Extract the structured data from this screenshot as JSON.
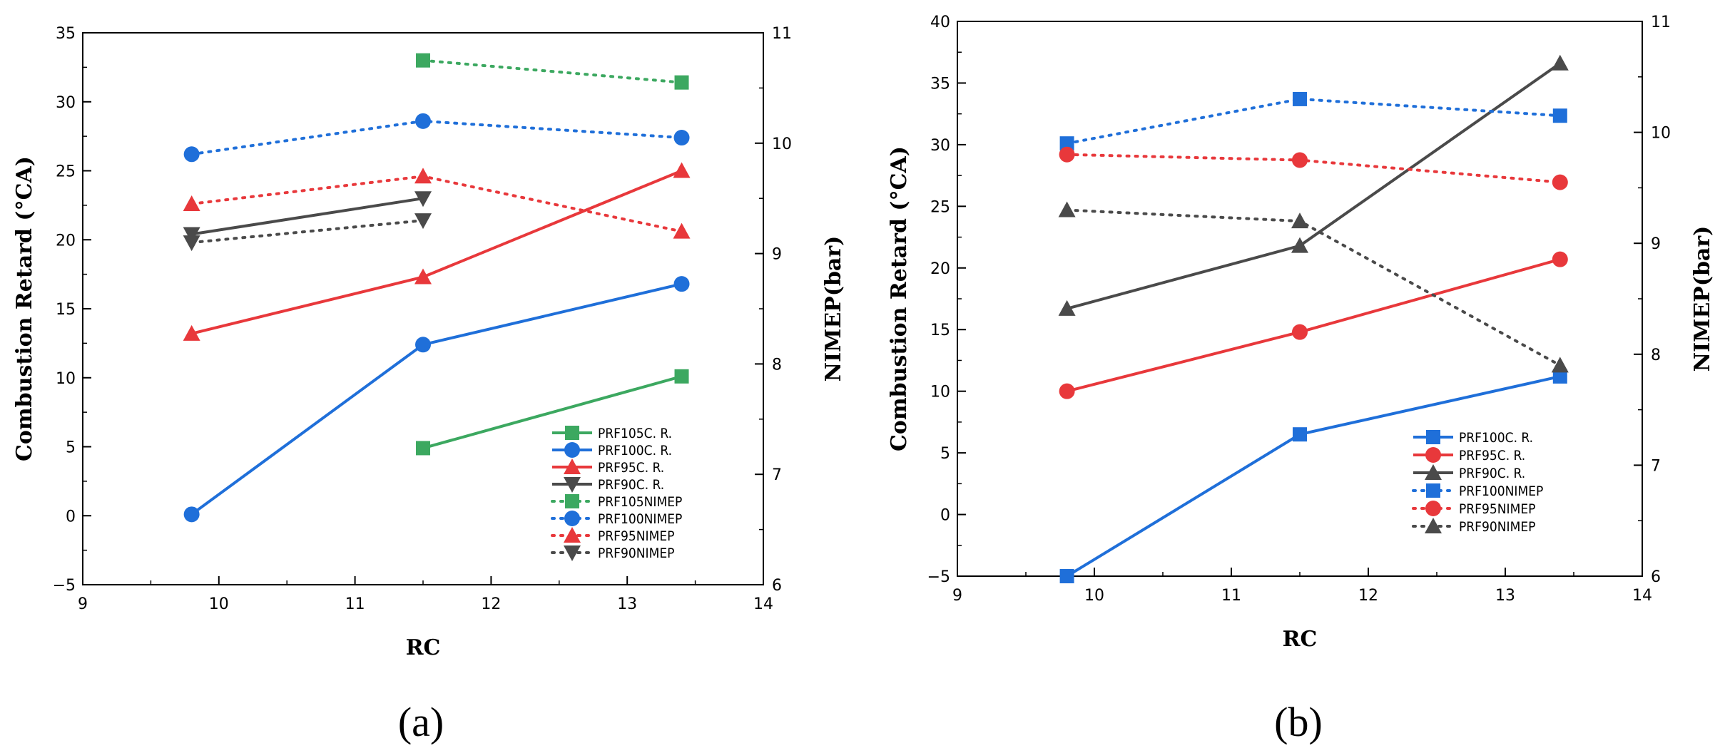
{
  "colors": {
    "PRF105": "#3CA860",
    "PRF100": "#1F6FD9",
    "PRF95": "#E8383B",
    "PRF90": "#4A4A4A"
  },
  "chart_data": [
    {
      "type": "line",
      "panel_label": "(a)",
      "xlabel": "RC",
      "ylabel": "Combustion Retard (°CA)",
      "y2label": "NIMEP(bar)",
      "xlim": [
        9,
        14
      ],
      "ylim": [
        -5,
        35
      ],
      "y2lim": [
        6,
        11
      ],
      "x_ticks": [
        9,
        10,
        11,
        12,
        13,
        14
      ],
      "y_ticks": [
        -5,
        0,
        5,
        10,
        15,
        20,
        25,
        30,
        35
      ],
      "y2_ticks": [
        6,
        7,
        8,
        9,
        10,
        11
      ],
      "legend_position": "bottom-right",
      "series": [
        {
          "name": "PRF105C. R.",
          "axis": "left",
          "style": "solid",
          "marker": "square",
          "color_key": "PRF105",
          "x": [
            11.5,
            13.4
          ],
          "y": [
            4.9,
            10.1
          ]
        },
        {
          "name": "PRF100C. R.",
          "axis": "left",
          "style": "solid",
          "marker": "circle",
          "color_key": "PRF100",
          "x": [
            9.8,
            11.5,
            13.4
          ],
          "y": [
            0.1,
            12.4,
            16.8
          ]
        },
        {
          "name": "PRF95C. R.",
          "axis": "left",
          "style": "solid",
          "marker": "triangle-up",
          "color_key": "PRF95",
          "x": [
            9.8,
            11.5,
            13.4
          ],
          "y": [
            13.2,
            17.3,
            25.0
          ]
        },
        {
          "name": "PRF90C. R.",
          "axis": "left",
          "style": "solid",
          "marker": "triangle-down",
          "color_key": "PRF90",
          "x": [
            9.8,
            11.5
          ],
          "y": [
            20.4,
            23.0
          ]
        },
        {
          "name": "PRF105NIMEP",
          "axis": "right",
          "style": "dotted",
          "marker": "square",
          "color_key": "PRF105",
          "x": [
            11.5,
            13.4
          ],
          "y": [
            10.75,
            10.55
          ]
        },
        {
          "name": "PRF100NIMEP",
          "axis": "right",
          "style": "dotted",
          "marker": "circle",
          "color_key": "PRF100",
          "x": [
            9.8,
            11.5,
            13.4
          ],
          "y": [
            9.9,
            10.2,
            10.05
          ]
        },
        {
          "name": "PRF95NIMEP",
          "axis": "right",
          "style": "dotted",
          "marker": "triangle-up",
          "color_key": "PRF95",
          "x": [
            9.8,
            11.5,
            13.4
          ],
          "y": [
            9.45,
            9.7,
            9.2
          ]
        },
        {
          "name": "PRF90NIMEP",
          "axis": "right",
          "style": "dotted",
          "marker": "triangle-down",
          "color_key": "PRF90",
          "x": [
            9.8,
            11.5
          ],
          "y": [
            9.1,
            9.3
          ]
        }
      ]
    },
    {
      "type": "line",
      "panel_label": "(b)",
      "xlabel": "RC",
      "ylabel": "Combustion Retard (°CA)",
      "y2label": "NIMEP(bar)",
      "xlim": [
        9,
        14
      ],
      "ylim": [
        -5,
        40
      ],
      "y2lim": [
        6,
        11
      ],
      "x_ticks": [
        9,
        10,
        11,
        12,
        13,
        14
      ],
      "y_ticks": [
        -5,
        0,
        5,
        10,
        15,
        20,
        25,
        30,
        35,
        40
      ],
      "y2_ticks": [
        6,
        7,
        8,
        9,
        10,
        11
      ],
      "legend_position": "bottom-right",
      "series": [
        {
          "name": "PRF100C. R.",
          "axis": "left",
          "style": "solid",
          "marker": "square",
          "color_key": "PRF100",
          "x": [
            9.8,
            11.5,
            13.4
          ],
          "y": [
            -5.0,
            6.5,
            11.2
          ]
        },
        {
          "name": "PRF95C. R.",
          "axis": "left",
          "style": "solid",
          "marker": "circle",
          "color_key": "PRF95",
          "x": [
            9.8,
            11.5,
            13.4
          ],
          "y": [
            10.0,
            14.8,
            20.7
          ]
        },
        {
          "name": "PRF90C. R.",
          "axis": "left",
          "style": "solid",
          "marker": "triangle-up",
          "color_key": "PRF90",
          "x": [
            9.8,
            11.5,
            13.4
          ],
          "y": [
            16.7,
            21.8,
            36.6
          ]
        },
        {
          "name": "PRF100NIMEP",
          "axis": "right",
          "style": "dotted",
          "marker": "square",
          "color_key": "PRF100",
          "x": [
            9.8,
            11.5,
            13.4
          ],
          "y": [
            9.9,
            10.3,
            10.15
          ]
        },
        {
          "name": "PRF95NIMEP",
          "axis": "right",
          "style": "dotted",
          "marker": "circle",
          "color_key": "PRF95",
          "x": [
            9.8,
            11.5,
            13.4
          ],
          "y": [
            9.8,
            9.75,
            9.55
          ]
        },
        {
          "name": "PRF90NIMEP",
          "axis": "right",
          "style": "dotted",
          "marker": "triangle-up",
          "color_key": "PRF90",
          "x": [
            9.8,
            11.5,
            13.4
          ],
          "y": [
            9.3,
            9.2,
            7.9
          ]
        }
      ]
    }
  ]
}
